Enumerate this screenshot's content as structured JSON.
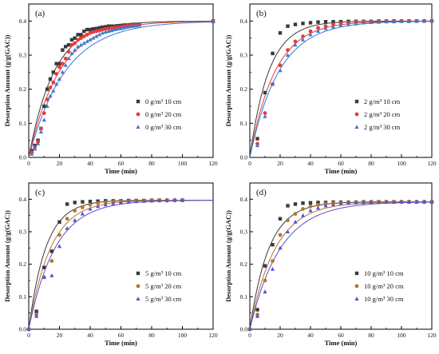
{
  "chart_data": [
    {
      "type": "scatter",
      "panel_label": "(a)",
      "xlabel": "Time (min)",
      "ylabel": "Desorption Amount (g/g(GAC))",
      "xlim": [
        0,
        120
      ],
      "ylim": [
        0,
        0.45
      ],
      "x_ticks": [
        "0",
        "20",
        "40",
        "60",
        "80",
        "100",
        "120"
      ],
      "y_ticks": [
        "0.0",
        "0.1",
        "0.2",
        "0.3",
        "0.4"
      ],
      "legend_position": "bottom-right",
      "series": [
        {
          "name": "0 g/m³ 10 cm",
          "marker": "square",
          "color": "#3a3a3a",
          "fit_k": 0.06,
          "fit_qe": 0.4,
          "x": [
            2,
            4,
            6,
            8,
            10,
            12,
            14,
            16,
            18,
            20,
            22,
            24,
            26,
            28,
            30,
            32,
            34,
            36,
            38,
            40,
            42,
            44,
            46,
            48,
            50,
            52,
            54,
            56,
            58,
            60,
            62,
            64,
            66,
            68,
            70,
            72,
            120
          ],
          "y": [
            0.02,
            0.035,
            0.05,
            0.085,
            0.15,
            0.2,
            0.23,
            0.25,
            0.275,
            0.275,
            0.315,
            0.325,
            0.33,
            0.345,
            0.35,
            0.36,
            0.36,
            0.37,
            0.375,
            0.375,
            0.377,
            0.378,
            0.38,
            0.382,
            0.383,
            0.385,
            0.385,
            0.385,
            0.386,
            0.387,
            0.388,
            0.388,
            0.389,
            0.39,
            0.39,
            0.39,
            0.4
          ]
        },
        {
          "name": "0 g/m³ 20 cm",
          "marker": "circle",
          "color": "#e83a3a",
          "fit_k": 0.05,
          "fit_qe": 0.4,
          "x": [
            2,
            4,
            6,
            8,
            10,
            12,
            14,
            16,
            18,
            20,
            22,
            24,
            26,
            28,
            30,
            32,
            34,
            36,
            38,
            40,
            42,
            44,
            46,
            48,
            50,
            52,
            54,
            56,
            58,
            60,
            62,
            64,
            66,
            68,
            70,
            72,
            120
          ],
          "y": [
            0.015,
            0.03,
            0.045,
            0.085,
            0.13,
            0.17,
            0.205,
            0.22,
            0.245,
            0.265,
            0.275,
            0.29,
            0.31,
            0.33,
            0.335,
            0.345,
            0.35,
            0.355,
            0.36,
            0.365,
            0.368,
            0.37,
            0.372,
            0.375,
            0.377,
            0.378,
            0.38,
            0.381,
            0.382,
            0.383,
            0.385,
            0.386,
            0.387,
            0.388,
            0.388,
            0.39,
            0.4
          ]
        },
        {
          "name": "0 g/m³ 30 cm",
          "marker": "triangle",
          "color": "#3a7bd5",
          "fit_k": 0.042,
          "fit_qe": 0.4,
          "x": [
            2,
            4,
            6,
            8,
            10,
            12,
            14,
            16,
            18,
            20,
            22,
            24,
            26,
            28,
            30,
            32,
            34,
            36,
            38,
            40,
            42,
            44,
            46,
            48,
            50,
            52,
            54,
            56,
            58,
            60,
            62,
            64,
            66,
            68,
            70,
            72,
            120
          ],
          "y": [
            0.01,
            0.025,
            0.04,
            0.075,
            0.11,
            0.15,
            0.18,
            0.195,
            0.215,
            0.23,
            0.25,
            0.27,
            0.29,
            0.305,
            0.315,
            0.325,
            0.33,
            0.335,
            0.34,
            0.345,
            0.35,
            0.355,
            0.36,
            0.365,
            0.368,
            0.37,
            0.372,
            0.375,
            0.377,
            0.378,
            0.38,
            0.382,
            0.384,
            0.385,
            0.386,
            0.388,
            0.398
          ]
        }
      ]
    },
    {
      "type": "scatter",
      "panel_label": "(b)",
      "xlabel": "Time (min)",
      "ylabel": "Desorption Amount (g/g(GAC))",
      "xlim": [
        0,
        120
      ],
      "ylim": [
        0,
        0.45
      ],
      "x_ticks": [
        "0",
        "20",
        "40",
        "60",
        "80",
        "100",
        "120"
      ],
      "y_ticks": [
        "0.0",
        "0.1",
        "0.2",
        "0.3",
        "0.4"
      ],
      "legend_position": "bottom-right",
      "series": [
        {
          "name": "2 g/m³ 10 cm",
          "marker": "square",
          "color": "#3a3a3a",
          "fit_k": 0.08,
          "fit_qe": 0.4,
          "x": [
            5,
            10,
            15,
            20,
            25,
            30,
            35,
            40,
            45,
            50,
            55,
            60,
            65,
            70,
            75,
            80,
            85,
            90,
            95,
            100,
            105,
            110,
            115,
            120
          ],
          "y": [
            0.055,
            0.19,
            0.305,
            0.365,
            0.385,
            0.39,
            0.393,
            0.395,
            0.397,
            0.398,
            0.398,
            0.398,
            0.399,
            0.399,
            0.399,
            0.399,
            0.4,
            0.4,
            0.4,
            0.4,
            0.4,
            0.4,
            0.4,
            0.4
          ]
        },
        {
          "name": "2 g/m³ 20 cm",
          "marker": "circle",
          "color": "#e83a3a",
          "fit_k": 0.06,
          "fit_qe": 0.4,
          "x": [
            5,
            10,
            15,
            20,
            25,
            30,
            35,
            40,
            45,
            50,
            55,
            60,
            65,
            70,
            75,
            80,
            85,
            90,
            95,
            100,
            105,
            110,
            115,
            120
          ],
          "y": [
            0.04,
            0.13,
            0.215,
            0.27,
            0.315,
            0.34,
            0.355,
            0.37,
            0.38,
            0.385,
            0.39,
            0.393,
            0.395,
            0.397,
            0.398,
            0.398,
            0.399,
            0.399,
            0.399,
            0.4,
            0.4,
            0.4,
            0.4,
            0.4
          ]
        },
        {
          "name": "2 g/m³ 30 cm",
          "marker": "triangle",
          "color": "#3a7bd5",
          "fit_k": 0.052,
          "fit_qe": 0.4,
          "x": [
            5,
            10,
            15,
            20,
            25,
            30,
            35,
            40,
            45,
            50,
            55,
            60,
            65,
            70,
            75,
            80,
            85,
            90,
            95,
            100,
            105,
            110,
            115,
            120
          ],
          "y": [
            0.035,
            0.12,
            0.215,
            0.255,
            0.3,
            0.33,
            0.345,
            0.36,
            0.37,
            0.378,
            0.383,
            0.387,
            0.39,
            0.392,
            0.395,
            0.396,
            0.397,
            0.398,
            0.398,
            0.399,
            0.399,
            0.4,
            0.4,
            0.4
          ]
        }
      ]
    },
    {
      "type": "scatter",
      "panel_label": "(c)",
      "xlabel": "Time (min)",
      "ylabel": "Desorption Amount (g/g(GAC))",
      "xlim": [
        0,
        120
      ],
      "ylim": [
        0,
        0.45
      ],
      "x_ticks": [
        "0",
        "20",
        "40",
        "60",
        "80",
        "100",
        "120"
      ],
      "y_ticks": [
        "0.0",
        "0.1",
        "0.2",
        "0.3",
        "0.4"
      ],
      "legend_position": "bottom-right",
      "series": [
        {
          "name": "5 g/m³ 10 cm",
          "marker": "square",
          "color": "#3a3a3a",
          "fit_k": 0.09,
          "fit_qe": 0.397,
          "x": [
            0,
            5,
            10,
            15,
            20,
            25,
            30,
            35,
            40,
            45,
            50,
            55,
            60,
            65,
            70,
            75,
            80,
            85,
            90,
            95,
            100
          ],
          "y": [
            0.0,
            0.055,
            0.19,
            0.24,
            0.33,
            0.385,
            0.39,
            0.392,
            0.393,
            0.394,
            0.395,
            0.395,
            0.395,
            0.396,
            0.396,
            0.396,
            0.397,
            0.397,
            0.397,
            0.397,
            0.397
          ]
        },
        {
          "name": "5 g/m³ 20 cm",
          "marker": "circle",
          "color": "#b5782a",
          "fit_k": 0.07,
          "fit_qe": 0.397,
          "x": [
            0,
            5,
            10,
            15,
            20,
            25,
            30,
            35,
            40,
            45,
            50,
            55,
            60,
            65,
            70,
            75,
            80,
            85,
            90,
            95,
            100
          ],
          "y": [
            0.0,
            0.045,
            0.16,
            0.21,
            0.29,
            0.34,
            0.365,
            0.375,
            0.383,
            0.388,
            0.39,
            0.392,
            0.393,
            0.394,
            0.395,
            0.395,
            0.396,
            0.396,
            0.396,
            0.397,
            0.397
          ]
        },
        {
          "name": "5 g/m³ 30 cm",
          "marker": "triangle",
          "color": "#5a4fd8",
          "fit_k": 0.058,
          "fit_qe": 0.397,
          "x": [
            0,
            5,
            10,
            15,
            20,
            25,
            30,
            35,
            40,
            45,
            50,
            55,
            60,
            65,
            70,
            75,
            80,
            85,
            90,
            95,
            100
          ],
          "y": [
            0.0,
            0.04,
            0.16,
            0.165,
            0.255,
            0.31,
            0.335,
            0.355,
            0.37,
            0.378,
            0.383,
            0.387,
            0.39,
            0.392,
            0.393,
            0.394,
            0.395,
            0.396,
            0.396,
            0.397,
            0.397
          ]
        }
      ]
    },
    {
      "type": "scatter",
      "panel_label": "(d)",
      "xlabel": "Time (min)",
      "ylabel": "Desorption Amount (g/g(GAC))",
      "xlim": [
        0,
        120
      ],
      "ylim": [
        0,
        0.45
      ],
      "x_ticks": [
        "0",
        "20",
        "40",
        "60",
        "80",
        "100",
        "120"
      ],
      "y_ticks": [
        "0.0",
        "0.1",
        "0.2",
        "0.3",
        "0.4"
      ],
      "legend_position": "bottom-right",
      "series": [
        {
          "name": "10 g/m³ 10 cm",
          "marker": "square",
          "color": "#3a3a3a",
          "fit_k": 0.08,
          "fit_qe": 0.392,
          "x": [
            0,
            5,
            10,
            15,
            20,
            25,
            30,
            35,
            40,
            45,
            50,
            55,
            60,
            65,
            70,
            75,
            80,
            85,
            90,
            95,
            100,
            105,
            110,
            115,
            120
          ],
          "y": [
            0.0,
            0.06,
            0.195,
            0.26,
            0.34,
            0.38,
            0.385,
            0.388,
            0.389,
            0.39,
            0.39,
            0.391,
            0.391,
            0.391,
            0.391,
            0.392,
            0.392,
            0.392,
            0.392,
            0.392,
            0.392,
            0.392,
            0.392,
            0.392,
            0.392
          ]
        },
        {
          "name": "10 g/m³ 20 cm",
          "marker": "circle",
          "color": "#b5782a",
          "fit_k": 0.06,
          "fit_qe": 0.392,
          "x": [
            0,
            5,
            10,
            15,
            20,
            25,
            30,
            35,
            40,
            45,
            50,
            55,
            60,
            65,
            70,
            75,
            80,
            85,
            90,
            95,
            100,
            105,
            110,
            115,
            120
          ],
          "y": [
            0.0,
            0.045,
            0.15,
            0.21,
            0.29,
            0.335,
            0.355,
            0.37,
            0.378,
            0.383,
            0.386,
            0.388,
            0.389,
            0.39,
            0.39,
            0.391,
            0.391,
            0.391,
            0.392,
            0.392,
            0.392,
            0.392,
            0.392,
            0.392,
            0.392
          ]
        },
        {
          "name": "10 g/m³ 30 cm",
          "marker": "triangle",
          "color": "#5a4fd8",
          "fit_k": 0.05,
          "fit_qe": 0.392,
          "x": [
            0,
            5,
            10,
            15,
            20,
            25,
            30,
            35,
            40,
            45,
            50,
            55,
            60,
            65,
            70,
            75,
            80,
            85,
            90,
            95,
            100,
            105,
            110,
            115,
            120
          ],
          "y": [
            0.0,
            0.04,
            0.115,
            0.185,
            0.25,
            0.3,
            0.33,
            0.35,
            0.365,
            0.373,
            0.38,
            0.384,
            0.387,
            0.388,
            0.389,
            0.39,
            0.39,
            0.391,
            0.391,
            0.391,
            0.392,
            0.392,
            0.392,
            0.392,
            0.392
          ]
        }
      ]
    }
  ]
}
